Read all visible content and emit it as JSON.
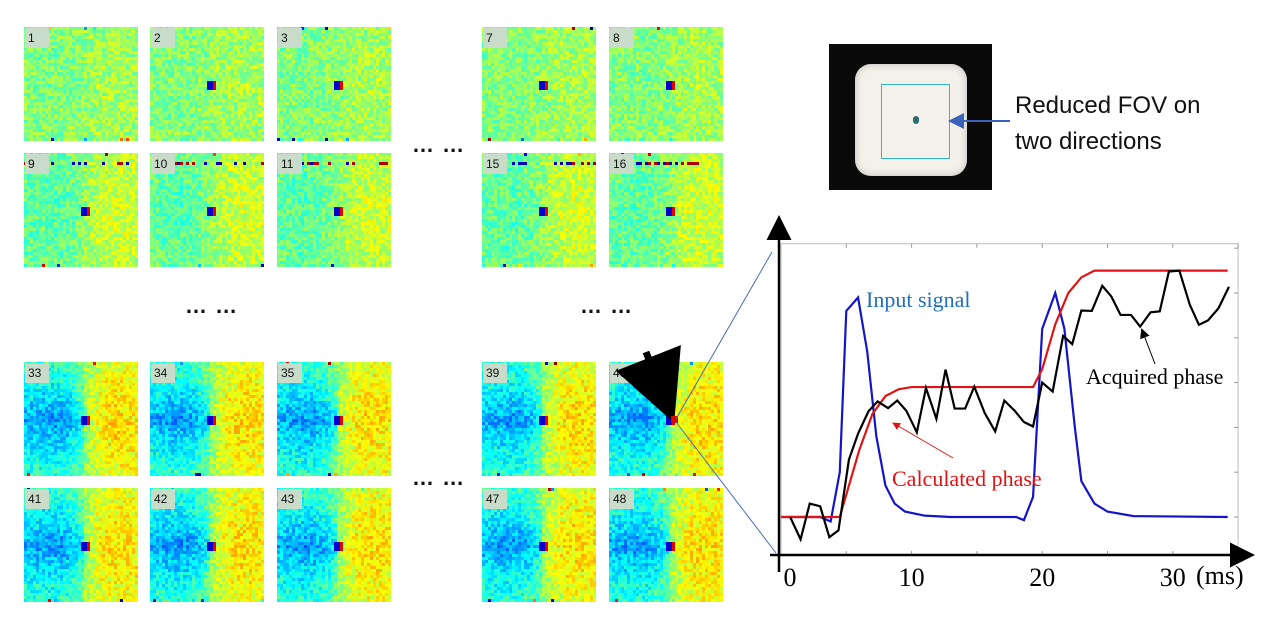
{
  "tiles": {
    "rows": [
      [
        "1",
        "2",
        "3",
        "7",
        "8"
      ],
      [
        "9",
        "10",
        "11",
        "15",
        "16"
      ],
      [
        "33",
        "34",
        "35",
        "39",
        "40"
      ],
      [
        "41",
        "42",
        "43",
        "47",
        "48"
      ]
    ],
    "ellipsis": "… …"
  },
  "photo": {
    "annotation_line1": "Reduced FOV on",
    "annotation_line2": "two directions"
  },
  "colors": {
    "input": "#1414c8",
    "calculated": "#e01414",
    "acquired": "#000000",
    "input_label": "#1f6fc0"
  },
  "chart_data": {
    "type": "line",
    "xlabel": "(ms)",
    "xticks": [
      "0",
      "10",
      "20",
      "30"
    ],
    "xtick_values": [
      0,
      10,
      20,
      30
    ],
    "xlim": [
      -0.2,
      36.5
    ],
    "ylim": [
      -0.85,
      6.8
    ],
    "grid": false,
    "annotations": [
      "Input signal",
      "Calculated phase",
      "Acquired phase"
    ],
    "series": [
      {
        "name": "Input signal",
        "points": [
          [
            0,
            0
          ],
          [
            3,
            0
          ],
          [
            3.8,
            -0.1
          ],
          [
            4.5,
            1
          ],
          [
            5,
            4.6
          ],
          [
            5.9,
            4.9
          ],
          [
            6.6,
            3.7
          ],
          [
            7.3,
            1.8
          ],
          [
            8,
            0.7
          ],
          [
            8.7,
            0.3
          ],
          [
            9.5,
            0.12
          ],
          [
            11,
            0.03
          ],
          [
            13,
            0
          ],
          [
            18,
            0
          ],
          [
            18.6,
            -0.07
          ],
          [
            19.3,
            0.45
          ],
          [
            20,
            4.2
          ],
          [
            21,
            5
          ],
          [
            21.7,
            4.2
          ],
          [
            22.5,
            2
          ],
          [
            23,
            0.8
          ],
          [
            24,
            0.3
          ],
          [
            25,
            0.12
          ],
          [
            27,
            0.02
          ],
          [
            34.2,
            0
          ]
        ]
      },
      {
        "name": "Calculated phase",
        "points": [
          [
            0,
            0
          ],
          [
            4.5,
            0
          ],
          [
            5,
            0.5
          ],
          [
            6,
            1.5
          ],
          [
            7,
            2.3
          ],
          [
            8,
            2.7
          ],
          [
            9,
            2.85
          ],
          [
            10,
            2.9
          ],
          [
            19.3,
            2.9
          ],
          [
            20,
            3.3
          ],
          [
            21,
            4.3
          ],
          [
            22,
            5.0
          ],
          [
            23,
            5.35
          ],
          [
            24,
            5.5
          ],
          [
            25,
            5.5
          ],
          [
            34.2,
            5.5
          ]
        ]
      },
      {
        "name": "Acquired phase",
        "points": [
          [
            0.7,
            0
          ],
          [
            1.5,
            -0.5
          ],
          [
            2.2,
            0.3
          ],
          [
            3,
            0.24
          ],
          [
            3.7,
            -0.45
          ],
          [
            4.4,
            -0.3
          ],
          [
            5.2,
            1.28
          ],
          [
            5.9,
            1.86
          ],
          [
            6.7,
            2.36
          ],
          [
            7.4,
            2.58
          ],
          [
            8.2,
            2.43
          ],
          [
            8.9,
            2.6
          ],
          [
            9.6,
            2.37
          ],
          [
            10.4,
            1.89
          ],
          [
            11.1,
            2.88
          ],
          [
            11.9,
            2.19
          ],
          [
            12.6,
            3.29
          ],
          [
            13.3,
            2.42
          ],
          [
            14.1,
            2.42
          ],
          [
            14.8,
            2.91
          ],
          [
            15.6,
            2.32
          ],
          [
            16.4,
            1.91
          ],
          [
            17.1,
            2.6
          ],
          [
            17.9,
            2.37
          ],
          [
            18.6,
            2.12
          ],
          [
            19.3,
            2.02
          ],
          [
            20,
            3.0
          ],
          [
            20.8,
            2.8
          ],
          [
            21.6,
            4.04
          ],
          [
            22.3,
            3.86
          ],
          [
            23,
            4.61
          ],
          [
            23.8,
            4.6
          ],
          [
            24.6,
            5.16
          ],
          [
            25.3,
            4.92
          ],
          [
            26,
            4.51
          ],
          [
            26.8,
            4.51
          ],
          [
            27.5,
            4.25
          ],
          [
            28.3,
            4.57
          ],
          [
            29,
            4.59
          ],
          [
            29.7,
            5.48
          ],
          [
            30.5,
            5.5
          ],
          [
            31.3,
            4.74
          ],
          [
            32,
            4.29
          ],
          [
            32.7,
            4.39
          ],
          [
            33.5,
            4.66
          ],
          [
            34.3,
            5.14
          ]
        ]
      }
    ]
  }
}
